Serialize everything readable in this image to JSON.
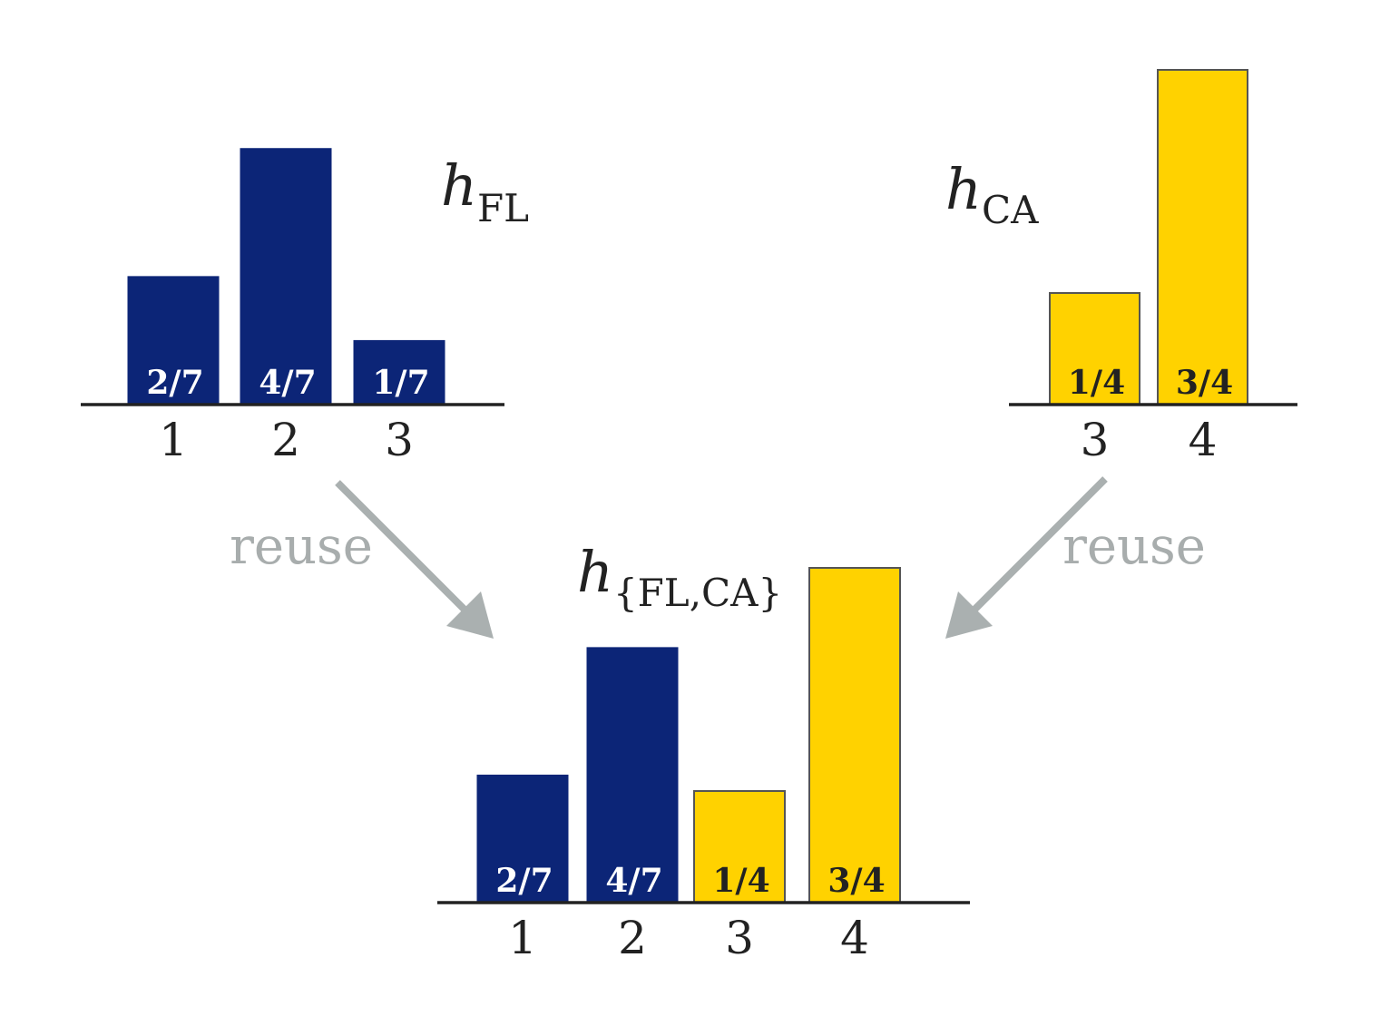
{
  "colors": {
    "source_fl": "#0c2577",
    "source_ca": "#ffd200",
    "axis": "#222222",
    "arrow": "#aab0b0",
    "reuse_text": "#a8adad"
  },
  "chart_data": [
    {
      "type": "bar",
      "title_main": "h",
      "title_sub": "FL",
      "categories": [
        "1",
        "2",
        "3"
      ],
      "values": [
        0.2857,
        0.5714,
        0.1429
      ],
      "bar_labels": [
        "2/7",
        "4/7",
        "1/7"
      ],
      "bar_sources": [
        "FL",
        "FL",
        "FL"
      ],
      "ylim": [
        0,
        1
      ]
    },
    {
      "type": "bar",
      "title_main": "h",
      "title_sub": "CA",
      "categories": [
        "3",
        "4"
      ],
      "values": [
        0.25,
        0.75
      ],
      "bar_labels": [
        "1/4",
        "3/4"
      ],
      "bar_sources": [
        "CA",
        "CA"
      ],
      "ylim": [
        0,
        1
      ]
    },
    {
      "type": "bar",
      "title_main": "h",
      "title_sub": "{FL,CA}",
      "categories": [
        "1",
        "2",
        "3",
        "4"
      ],
      "values": [
        0.2857,
        0.5714,
        0.25,
        0.75
      ],
      "bar_labels": [
        "2/7",
        "4/7",
        "1/4",
        "3/4"
      ],
      "bar_sources": [
        "FL",
        "FL",
        "CA",
        "CA"
      ],
      "ylim": [
        0,
        1
      ]
    }
  ],
  "arrows": {
    "left_label": "reuse",
    "right_label": "reuse"
  }
}
